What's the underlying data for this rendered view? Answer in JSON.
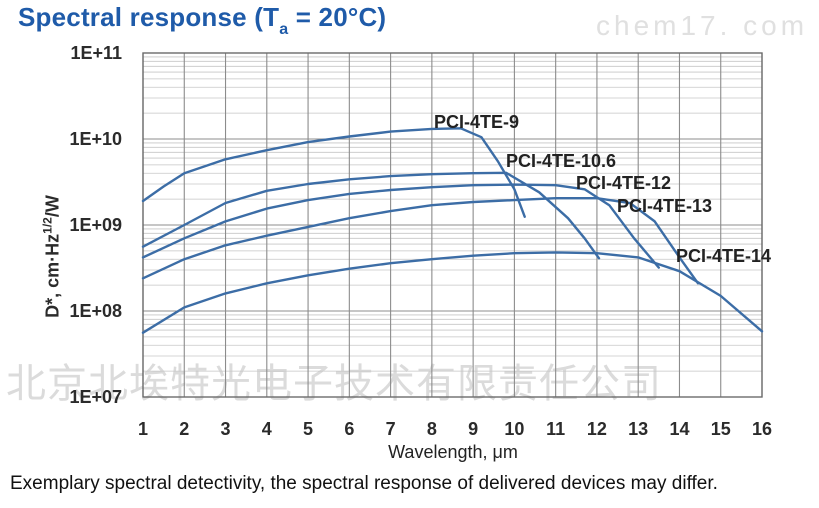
{
  "title": {
    "prefix": "Spectral response (T",
    "subscript": "a",
    "suffix": " = 20°C)",
    "color": "#1f5ba9"
  },
  "watermarks": {
    "top_right": "chem17. com",
    "center": "北京北埃特光电子技术有限责任公司"
  },
  "caption": "Exemplary spectral detectivity, the spectral response of delivered devices may differ.",
  "chart_data": {
    "type": "line",
    "title": "Spectral response (Ta = 20°C)",
    "xlabel": "Wavelength, μm",
    "ylabel": "D*, cm·Hz^1/2/W",
    "ylabel_parts": {
      "pre": "D*, cm·Hz",
      "sup": "1/2",
      "post": "/W"
    },
    "x_range": [
      1,
      16
    ],
    "y_range_log": [
      10000000.0,
      100000000000.0
    ],
    "x_tick_labels": [
      "1",
      "2",
      "3",
      "4",
      "5",
      "6",
      "7",
      "8",
      "9",
      "10",
      "11",
      "12",
      "13",
      "14",
      "15",
      "16"
    ],
    "y_tick_labels": [
      "1E+11",
      "1E+10",
      "1E+09",
      "1E+08",
      "1E+07"
    ],
    "grid": "major gray + minor log gridlines, full border",
    "legend_position": "inline labels next to curves",
    "curve_color": "#3c6da6",
    "grid_major_color": "#8c8c8c",
    "grid_minor_color": "#c6c6c6",
    "border_color": "#6b6b6b",
    "series": [
      {
        "name": "PCI-4TE-9",
        "points": [
          [
            1,
            1900000000.0
          ],
          [
            1.5,
            2800000000.0
          ],
          [
            2,
            4000000000.0
          ],
          [
            3,
            5800000000.0
          ],
          [
            4,
            7400000000.0
          ],
          [
            5,
            9200000000.0
          ],
          [
            6,
            10700000000.0
          ],
          [
            7,
            12200000000.0
          ],
          [
            8,
            13100000000.0
          ],
          [
            8.7,
            13300000000.0
          ],
          [
            9.2,
            10500000000.0
          ],
          [
            9.6,
            5500000000.0
          ],
          [
            10,
            2600000000.0
          ],
          [
            10.25,
            1250000000.0
          ]
        ]
      },
      {
        "name": "PCI-4TE-10.6",
        "points": [
          [
            1,
            560000000.0
          ],
          [
            2,
            1000000000.0
          ],
          [
            3,
            1800000000.0
          ],
          [
            4,
            2500000000.0
          ],
          [
            5,
            3000000000.0
          ],
          [
            6,
            3400000000.0
          ],
          [
            7,
            3700000000.0
          ],
          [
            8,
            3900000000.0
          ],
          [
            9,
            4000000000.0
          ],
          [
            9.8,
            4050000000.0
          ],
          [
            10.6,
            2400000000.0
          ],
          [
            11.3,
            1200000000.0
          ],
          [
            11.7,
            700000000.0
          ],
          [
            12.05,
            410000000.0
          ]
        ]
      },
      {
        "name": "PCI-4TE-12",
        "points": [
          [
            1,
            420000000.0
          ],
          [
            2,
            700000000.0
          ],
          [
            3,
            1100000000.0
          ],
          [
            4,
            1550000000.0
          ],
          [
            5,
            1950000000.0
          ],
          [
            6,
            2300000000.0
          ],
          [
            7,
            2550000000.0
          ],
          [
            8,
            2750000000.0
          ],
          [
            9,
            2900000000.0
          ],
          [
            10,
            2950000000.0
          ],
          [
            11,
            2900000000.0
          ],
          [
            11.7,
            2600000000.0
          ],
          [
            12.3,
            1700000000.0
          ],
          [
            12.9,
            700000000.0
          ],
          [
            13.5,
            320000000.0
          ]
        ]
      },
      {
        "name": "PCI-4TE-13",
        "points": [
          [
            1,
            240000000.0
          ],
          [
            2,
            400000000.0
          ],
          [
            3,
            580000000.0
          ],
          [
            4,
            750000000.0
          ],
          [
            5,
            950000000.0
          ],
          [
            6,
            1200000000.0
          ],
          [
            7,
            1450000000.0
          ],
          [
            8,
            1700000000.0
          ],
          [
            9,
            1850000000.0
          ],
          [
            10,
            1950000000.0
          ],
          [
            11,
            2050000000.0
          ],
          [
            12,
            2050000000.0
          ],
          [
            12.8,
            1800000000.0
          ],
          [
            13.4,
            1100000000.0
          ],
          [
            14,
            420000000.0
          ],
          [
            14.45,
            210000000.0
          ]
        ]
      },
      {
        "name": "PCI-4TE-14",
        "points": [
          [
            1,
            56000000.0
          ],
          [
            2,
            110000000.0
          ],
          [
            3,
            160000000.0
          ],
          [
            4,
            210000000.0
          ],
          [
            5,
            260000000.0
          ],
          [
            6,
            310000000.0
          ],
          [
            7,
            360000000.0
          ],
          [
            8,
            400000000.0
          ],
          [
            9,
            440000000.0
          ],
          [
            10,
            470000000.0
          ],
          [
            11,
            480000000.0
          ],
          [
            12,
            470000000.0
          ],
          [
            13,
            420000000.0
          ],
          [
            14,
            290000000.0
          ],
          [
            15,
            150000000.0
          ],
          [
            16,
            58000000.0
          ]
        ]
      }
    ]
  }
}
